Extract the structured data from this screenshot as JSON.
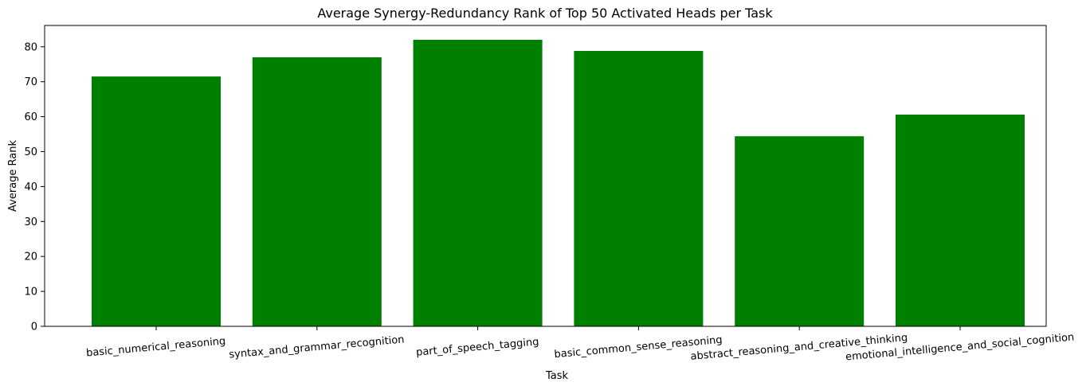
{
  "chart_data": {
    "type": "bar",
    "title": "Average Synergy-Redundancy Rank of Top 50 Activated Heads per Task",
    "xlabel": "Task",
    "ylabel": "Average Rank",
    "categories": [
      "basic_numerical_reasoning",
      "syntax_and_grammar_recognition",
      "part_of_speech_tagging",
      "basic_common_sense_reasoning",
      "abstract_reasoning_and_creative_thinking",
      "emotional_intelligence_and_social_cognition"
    ],
    "values": [
      71.5,
      77.0,
      82.0,
      78.8,
      54.4,
      60.6
    ],
    "ylim": [
      0,
      86.1
    ],
    "yticks": [
      0,
      10,
      20,
      30,
      40,
      50,
      60,
      70,
      80
    ],
    "bar_color": "#008000",
    "grid": false,
    "legend": "none"
  }
}
